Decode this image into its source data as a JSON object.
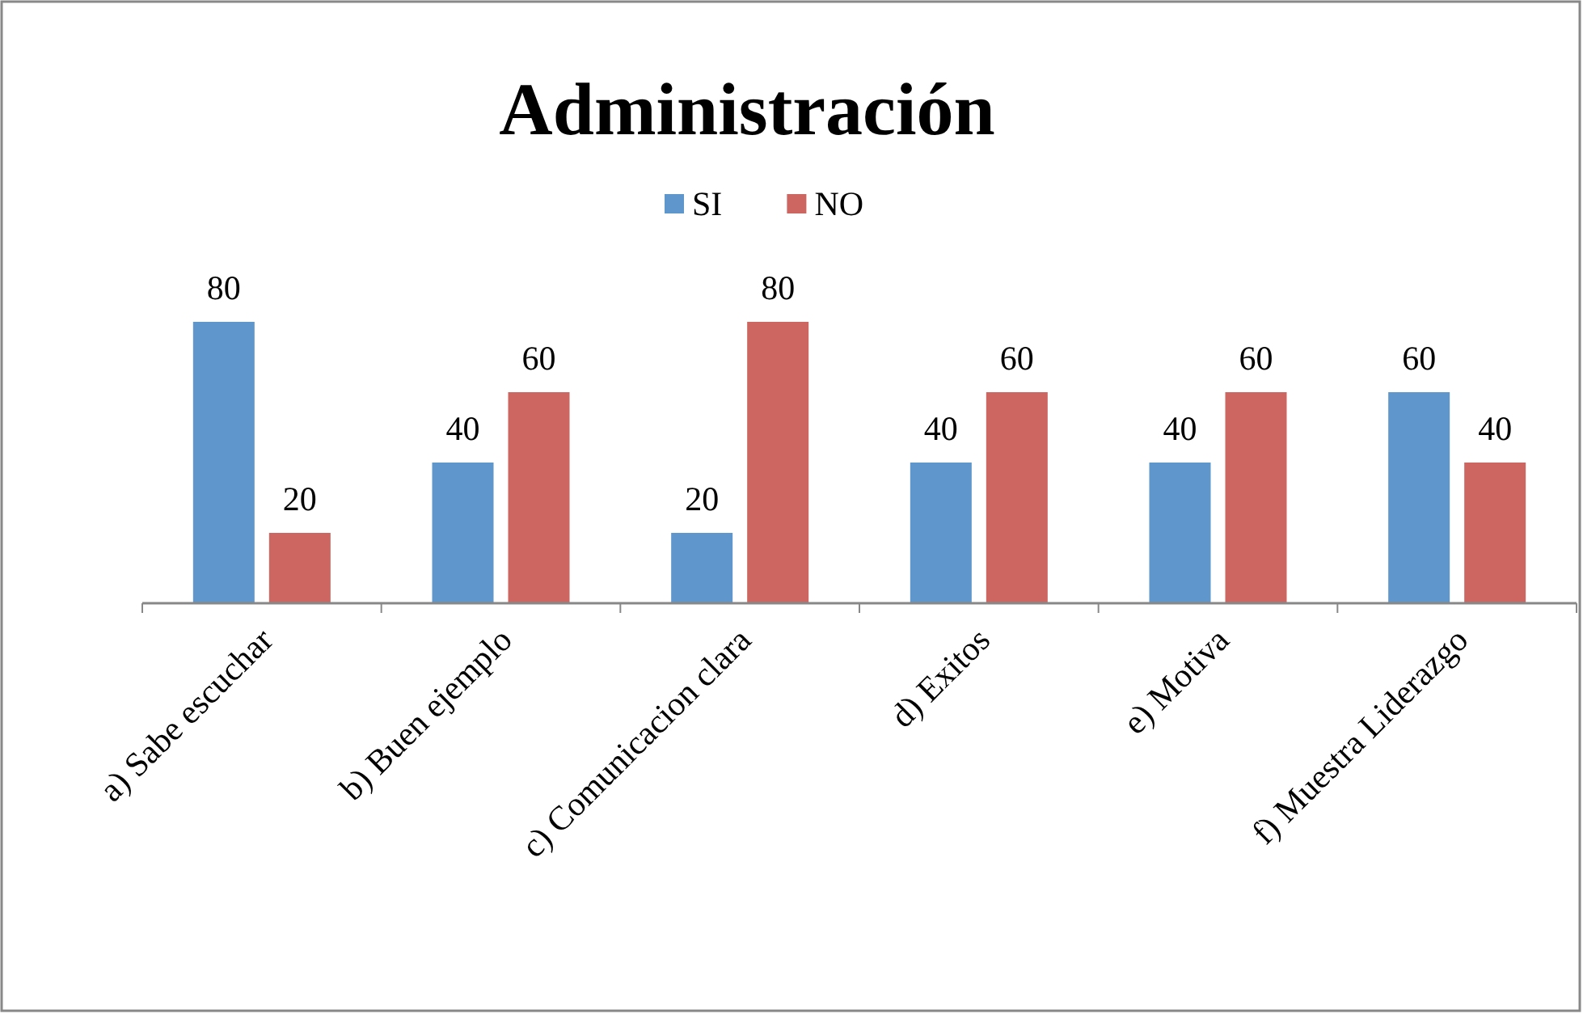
{
  "chart_data": {
    "type": "bar",
    "title": "Administración",
    "categories": [
      "a) Sabe escuchar",
      "b) Buen ejemplo",
      "c) Comunicacion clara",
      "d) Exitos",
      "e) Motiva",
      "f) Muestra Liderazgo"
    ],
    "series": [
      {
        "name": "SI",
        "color": "#5f97cc",
        "values": [
          80,
          40,
          20,
          40,
          40,
          60
        ]
      },
      {
        "name": "NO",
        "color": "#cd6661",
        "values": [
          20,
          60,
          80,
          60,
          60,
          40
        ]
      }
    ],
    "data_labels": true,
    "legend": "top"
  }
}
